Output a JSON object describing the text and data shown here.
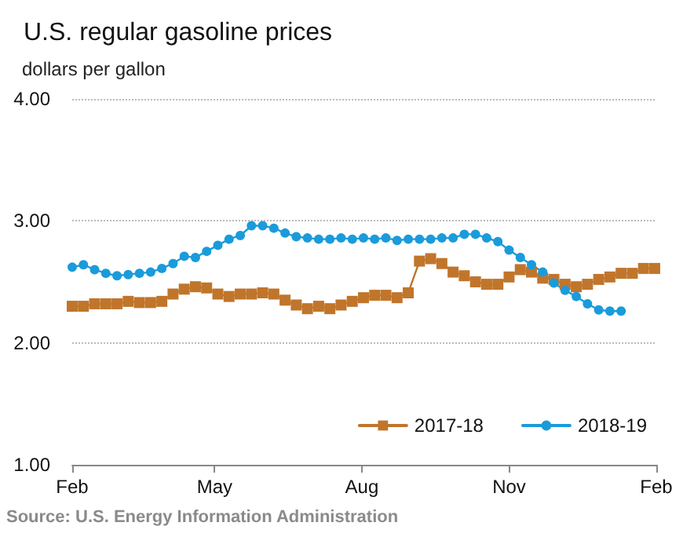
{
  "chart_data": {
    "type": "line",
    "title": "U.S. regular gasoline prices",
    "ylabel": "dollars per gallon",
    "annotations": [
      "Source: U.S. Energy Information Administration"
    ],
    "x": [
      "2018-02-01",
      "2018-02-08",
      "2018-02-15",
      "2018-02-22",
      "2018-03-01",
      "2018-03-08",
      "2018-03-15",
      "2018-03-22",
      "2018-03-29",
      "2018-04-05",
      "2018-04-12",
      "2018-04-19",
      "2018-04-26",
      "2018-05-03",
      "2018-05-10",
      "2018-05-17",
      "2018-05-24",
      "2018-05-31",
      "2018-06-07",
      "2018-06-14",
      "2018-06-21",
      "2018-06-28",
      "2018-07-05",
      "2018-07-12",
      "2018-07-19",
      "2018-07-26",
      "2018-08-02",
      "2018-08-09",
      "2018-08-16",
      "2018-08-23",
      "2018-08-30",
      "2018-09-06",
      "2018-09-13",
      "2018-09-20",
      "2018-09-27",
      "2018-10-04",
      "2018-10-11",
      "2018-10-18",
      "2018-10-25",
      "2018-11-01",
      "2018-11-08",
      "2018-11-15",
      "2018-11-22",
      "2018-11-29",
      "2018-12-06",
      "2018-12-13",
      "2018-12-20",
      "2018-12-27",
      "2019-01-03",
      "2019-01-10",
      "2019-01-17",
      "2019-01-24",
      "2019-01-31"
    ],
    "xlim": [
      "2018-02-01",
      "2019-02-01"
    ],
    "xticks": [
      {
        "value": "2018-02-01",
        "label": "Feb"
      },
      {
        "value": "2018-05-01",
        "label": "May"
      },
      {
        "value": "2018-08-01",
        "label": "Aug"
      },
      {
        "value": "2018-11-01",
        "label": "Nov"
      },
      {
        "value": "2019-02-01",
        "label": "Feb"
      }
    ],
    "ylim": [
      1,
      4
    ],
    "yticks": [
      {
        "value": 1,
        "label": "1.00"
      },
      {
        "value": 2,
        "label": "2.00"
      },
      {
        "value": 3,
        "label": "3.00"
      },
      {
        "value": 4,
        "label": "4.00"
      }
    ],
    "grid": "y",
    "legend": "bottom right",
    "series": [
      {
        "name": "2017-18",
        "color": "#c0752b",
        "marker": "square",
        "values": [
          2.3,
          2.3,
          2.32,
          2.32,
          2.32,
          2.34,
          2.33,
          2.33,
          2.34,
          2.4,
          2.44,
          2.46,
          2.45,
          2.4,
          2.38,
          2.4,
          2.4,
          2.41,
          2.4,
          2.35,
          2.31,
          2.28,
          2.3,
          2.28,
          2.31,
          2.34,
          2.37,
          2.39,
          2.39,
          2.37,
          2.41,
          2.67,
          2.69,
          2.65,
          2.58,
          2.55,
          2.5,
          2.48,
          2.48,
          2.54,
          2.6,
          2.58,
          2.53,
          2.52,
          2.48,
          2.46,
          2.48,
          2.52,
          2.54,
          2.57,
          2.57,
          2.61,
          2.61
        ]
      },
      {
        "name": "2018-19",
        "color": "#1a9bdb",
        "marker": "circle",
        "values": [
          2.62,
          2.64,
          2.6,
          2.57,
          2.55,
          2.56,
          2.57,
          2.58,
          2.61,
          2.65,
          2.71,
          2.7,
          2.75,
          2.8,
          2.85,
          2.88,
          2.96,
          2.96,
          2.94,
          2.9,
          2.87,
          2.86,
          2.85,
          2.85,
          2.86,
          2.85,
          2.86,
          2.85,
          2.86,
          2.84,
          2.85,
          2.85,
          2.85,
          2.86,
          2.86,
          2.89,
          2.89,
          2.86,
          2.83,
          2.76,
          2.7,
          2.64,
          2.58,
          2.49,
          2.43,
          2.38,
          2.32,
          2.27,
          2.26,
          2.26,
          null,
          null,
          null
        ]
      }
    ]
  }
}
